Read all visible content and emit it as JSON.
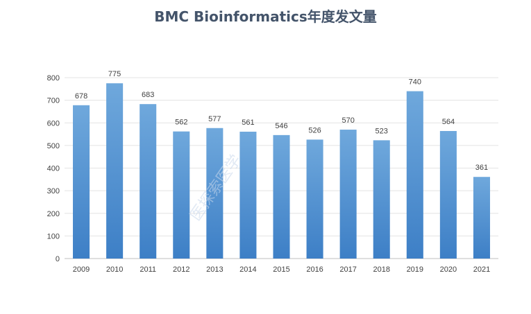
{
  "chart_data": {
    "type": "bar",
    "title": "BMC Bioinformatics年度发文量",
    "xlabel": "",
    "ylabel": "",
    "categories": [
      "2009",
      "2010",
      "2011",
      "2012",
      "2013",
      "2014",
      "2015",
      "2016",
      "2017",
      "2018",
      "2019",
      "2020",
      "2021"
    ],
    "values": [
      678,
      775,
      683,
      562,
      577,
      561,
      546,
      526,
      570,
      523,
      740,
      564,
      361
    ],
    "ylim": [
      0,
      800
    ],
    "yticks": [
      0,
      100,
      200,
      300,
      400,
      500,
      600,
      700,
      800
    ],
    "grid": true,
    "legend": "none",
    "bar_color_top": "#6fa8dc",
    "bar_color_bottom": "#3d7fc6",
    "data_labels": true
  },
  "watermark": "医探索医学"
}
